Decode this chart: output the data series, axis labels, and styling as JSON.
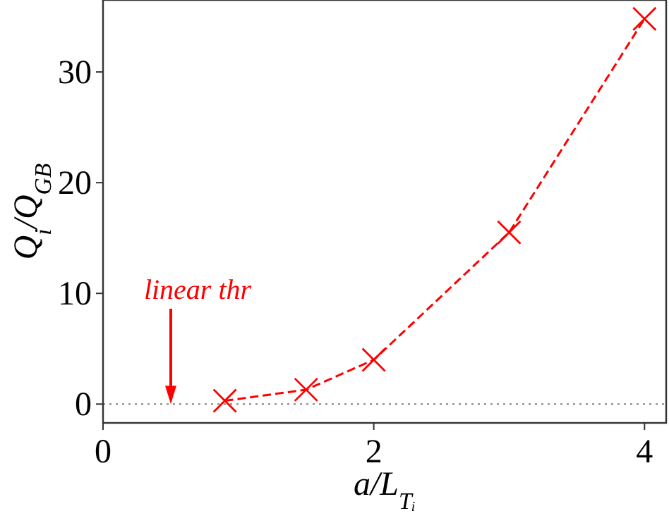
{
  "chart_data": {
    "type": "line",
    "xlabel": "a/L$_{Tᵢ}$",
    "ylabel": "Q$_{i}$/Q$_{GB}$",
    "x": [
      0.9,
      1.5,
      2,
      3,
      4
    ],
    "series": [
      {
        "color": "#ff0000",
        "values": [
          0.3,
          1.3,
          4.0,
          15.5,
          34.8
        ],
        "marker": "cross",
        "line_style": "dashed"
      }
    ],
    "xlim": [
      0,
      4.16
    ],
    "ylim": [
      -1.7,
      36.5
    ],
    "xticks": [
      0,
      2,
      4
    ],
    "yticks": [
      0,
      10,
      20,
      30
    ],
    "ref_lines": [
      {
        "axis": "y",
        "value": 0,
        "color": "#808080",
        "line_style": "dotted"
      }
    ],
    "annotations": [
      "linear thr"
    ]
  }
}
